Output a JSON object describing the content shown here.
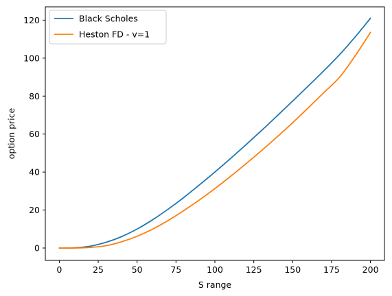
{
  "chart_data": {
    "type": "line",
    "title": "",
    "xlabel": "S range",
    "ylabel": "option price",
    "xlim": [
      -9,
      209
    ],
    "ylim": [
      -6.5,
      127
    ],
    "xticks": [
      0,
      25,
      50,
      75,
      100,
      125,
      150,
      175,
      200
    ],
    "yticks": [
      0,
      20,
      40,
      60,
      80,
      100,
      120
    ],
    "grid": false,
    "legend": "top-left",
    "x": [
      0,
      10,
      20,
      30,
      40,
      50,
      60,
      70,
      80,
      90,
      100,
      110,
      120,
      130,
      140,
      150,
      160,
      170,
      180,
      190,
      200
    ],
    "series": [
      {
        "name": "Black Scholes",
        "color": "#1f77b4",
        "values": [
          0,
          0.1,
          1.0,
          3.0,
          6.0,
          10.0,
          14.9,
          20.5,
          26.6,
          33.2,
          40.0,
          47.1,
          54.4,
          61.9,
          69.6,
          77.4,
          85.3,
          93.3,
          101.7,
          111.0,
          121.0
        ]
      },
      {
        "name": "Heston FD - v=1",
        "color": "#ff7f0e",
        "values": [
          0,
          0.0,
          0.3,
          1.2,
          3.3,
          6.2,
          10.0,
          14.5,
          19.7,
          25.3,
          31.3,
          37.7,
          44.4,
          51.3,
          58.5,
          66.0,
          73.8,
          81.8,
          89.8,
          101.0,
          113.5
        ]
      }
    ]
  }
}
